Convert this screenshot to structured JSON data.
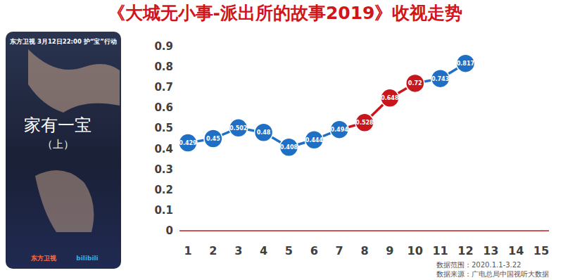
{
  "chart_data": {
    "type": "line",
    "title": "《大城无小事-派出所的故事2019》收视走势",
    "categories": [
      "1",
      "2",
      "3",
      "4",
      "5",
      "6",
      "7",
      "8",
      "9",
      "10",
      "11",
      "12",
      "13",
      "14",
      "15"
    ],
    "values": [
      0.429,
      0.45,
      0.502,
      0.48,
      0.408,
      0.444,
      0.494,
      0.528,
      0.648,
      0.72,
      0.743,
      0.817,
      null,
      null,
      null
    ],
    "colors": [
      "#1f6fc5",
      "#1f6fc5",
      "#1f6fc5",
      "#1f6fc5",
      "#1f6fc5",
      "#1f6fc5",
      "#1f6fc5",
      "#c8161d",
      "#c8161d",
      "#c8161d",
      "#1f6fc5",
      "#1f6fc5",
      "#1f6fc5",
      "#1f6fc5",
      "#1f6fc5"
    ],
    "ylim": [
      0,
      0.9
    ],
    "yticks": [
      0,
      0.1,
      0.2,
      0.3,
      0.4,
      0.5,
      0.6,
      0.7,
      0.8,
      0.9
    ],
    "grid": false,
    "data_labels": true,
    "marker": "circle",
    "annotations": [
      "数据范围：2020.1.1-3.22",
      "数据来源：广电总局中国视听大数据"
    ]
  },
  "poster": {
    "header": "东方卫视  3月12日22:00 护“宝”行动",
    "title": "家有一宝",
    "subtitle": "（上）",
    "logos": [
      "东方卫视",
      "bilibili"
    ]
  }
}
